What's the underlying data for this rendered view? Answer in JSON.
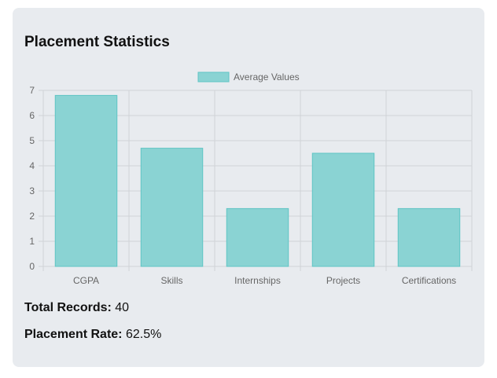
{
  "panel": {
    "title": "Placement Statistics"
  },
  "stats": {
    "total_records_label": "Total Records:",
    "total_records_value": "40",
    "placement_rate_label": "Placement Rate:",
    "placement_rate_value": "62.5%"
  },
  "chart_data": {
    "type": "bar",
    "categories": [
      "CGPA",
      "Skills",
      "Internships",
      "Projects",
      "Certifications"
    ],
    "series": [
      {
        "name": "Average Values",
        "values": [
          6.8,
          4.7,
          2.3,
          4.5,
          2.3
        ]
      }
    ],
    "ylim": [
      0,
      7
    ],
    "yticks": [
      0,
      1,
      2,
      3,
      4,
      5,
      6,
      7
    ],
    "legend_position": "top",
    "grid": true,
    "colors": {
      "bar_fill": "#8ad3d3",
      "bar_stroke": "#5fc4c4",
      "grid": "#d0d3d7",
      "tick_text": "#666666"
    }
  }
}
